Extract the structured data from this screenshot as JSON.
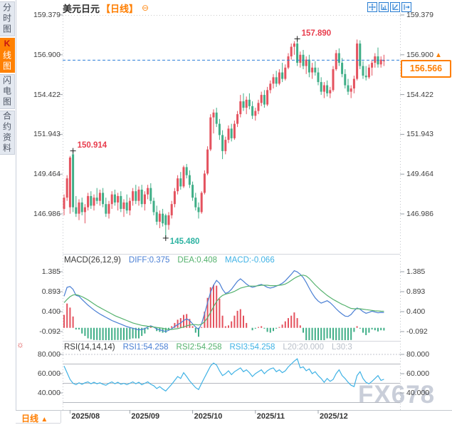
{
  "header": {
    "symbol": "美元日元",
    "period_tag": "【日线】",
    "collapse_icon": "⊖"
  },
  "sidebar": {
    "tabs": [
      {
        "label": "分时图",
        "active": false
      },
      {
        "label": "K线图",
        "first_char": "K",
        "rest": "线图",
        "active": true
      },
      {
        "label": "闪电图",
        "active": false
      },
      {
        "label": "合约资料",
        "active": false
      }
    ]
  },
  "toolbar_icons": [
    "pan-crosshair",
    "axis-bars",
    "axis-trend",
    "pop-out"
  ],
  "bottom_bar": {
    "period_label": "日线",
    "arrow": "▲"
  },
  "watermark": "FX678",
  "colors": {
    "up": "#e4525e",
    "down": "#3fae87",
    "current_line": "#2b7fd9",
    "accent_orange": "#ff7e00",
    "diff_blue": "#4a7fd4",
    "dea_green": "#55b26e",
    "macd_cyan": "#3fb2e5",
    "rsi_cyan": "#3fb2e5",
    "label_gray": "#b9bfc9",
    "high_label_red": "#e83d4d",
    "low_label_teal": "#2eb3a2"
  },
  "chart_data": {
    "type": "candlestick+macd+rsi",
    "symbol": "美元日元",
    "period": "日线",
    "price_axis_ticks": [
      "159.379",
      "156.900",
      "154.422",
      "151.943",
      "149.464",
      "146.986"
    ],
    "date_ticks": [
      {
        "label": "2025/08",
        "index": 2
      },
      {
        "label": "2025/09",
        "index": 22
      },
      {
        "label": "2025/10",
        "index": 43
      },
      {
        "label": "2025/11",
        "index": 64
      },
      {
        "label": "2025/12",
        "index": 85
      }
    ],
    "current_price": {
      "text": "156.566",
      "value": 156.566
    },
    "annotations": {
      "early_high": {
        "text": "150.914",
        "index": 3,
        "price": 150.914
      },
      "low": {
        "text": "145.480",
        "index": 34,
        "price": 145.48
      },
      "high": {
        "text": "157.890",
        "index": 78,
        "price": 157.89
      }
    },
    "candles": [
      [
        147.3,
        148.2,
        146.9,
        148.0
      ],
      [
        148.0,
        149.4,
        147.8,
        149.2
      ],
      [
        147.4,
        150.6,
        147.0,
        150.5
      ],
      [
        150.7,
        150.914,
        147.1,
        147.4
      ],
      [
        147.4,
        148.1,
        146.8,
        147.0
      ],
      [
        147.0,
        147.9,
        146.6,
        147.7
      ],
      [
        147.7,
        148.0,
        146.9,
        147.1
      ],
      [
        147.1,
        147.6,
        146.4,
        147.4
      ],
      [
        147.4,
        148.3,
        147.2,
        148.1
      ],
      [
        148.1,
        148.4,
        147.3,
        147.5
      ],
      [
        147.5,
        148.2,
        147.2,
        148.0
      ],
      [
        148.0,
        148.6,
        147.6,
        147.8
      ],
      [
        147.8,
        148.5,
        147.5,
        148.3
      ],
      [
        148.3,
        148.6,
        147.4,
        147.6
      ],
      [
        147.6,
        148.0,
        146.8,
        147.0
      ],
      [
        147.0,
        147.8,
        146.7,
        147.6
      ],
      [
        147.6,
        148.4,
        147.3,
        148.2
      ],
      [
        148.2,
        148.5,
        147.5,
        147.7
      ],
      [
        147.7,
        148.3,
        147.2,
        148.1
      ],
      [
        148.1,
        148.4,
        147.1,
        147.3
      ],
      [
        147.3,
        147.9,
        146.8,
        147.7
      ],
      [
        147.7,
        148.2,
        147.0,
        147.2
      ],
      [
        147.2,
        148.0,
        146.9,
        147.8
      ],
      [
        147.8,
        148.6,
        147.5,
        148.4
      ],
      [
        148.4,
        148.8,
        147.6,
        147.8
      ],
      [
        147.8,
        148.7,
        147.5,
        148.5
      ],
      [
        148.5,
        148.8,
        147.4,
        147.6
      ],
      [
        147.6,
        148.4,
        147.2,
        148.2
      ],
      [
        148.2,
        148.8,
        147.9,
        148.6
      ],
      [
        148.6,
        148.9,
        147.6,
        147.8
      ],
      [
        147.8,
        148.0,
        146.9,
        147.1
      ],
      [
        147.1,
        147.5,
        146.3,
        146.5
      ],
      [
        146.5,
        147.2,
        146.1,
        147.0
      ],
      [
        147.0,
        147.3,
        146.2,
        146.4
      ],
      [
        146.9,
        147.0,
        145.48,
        146.3
      ],
      [
        146.3,
        147.1,
        146.0,
        146.9
      ],
      [
        146.9,
        147.8,
        146.7,
        147.6
      ],
      [
        147.6,
        148.6,
        147.4,
        148.4
      ],
      [
        148.4,
        149.4,
        148.2,
        149.2
      ],
      [
        149.2,
        149.6,
        148.5,
        148.7
      ],
      [
        148.7,
        150.0,
        148.6,
        149.9
      ],
      [
        149.9,
        150.1,
        149.2,
        149.4
      ],
      [
        149.4,
        149.7,
        148.6,
        148.8
      ],
      [
        148.8,
        149.0,
        147.8,
        148.0
      ],
      [
        148.0,
        148.3,
        147.2,
        147.4
      ],
      [
        147.4,
        147.7,
        146.7,
        147.1
      ],
      [
        147.1,
        148.4,
        147.0,
        148.3
      ],
      [
        148.3,
        149.7,
        148.2,
        149.5
      ],
      [
        149.5,
        151.2,
        149.4,
        151.0
      ],
      [
        151.0,
        153.2,
        150.9,
        153.0
      ],
      [
        153.0,
        153.5,
        152.0,
        153.3
      ],
      [
        153.3,
        153.6,
        152.4,
        152.6
      ],
      [
        152.6,
        152.9,
        151.6,
        151.9
      ],
      [
        151.9,
        152.2,
        150.4,
        150.9
      ],
      [
        150.9,
        151.8,
        150.7,
        151.6
      ],
      [
        151.6,
        152.5,
        151.4,
        152.3
      ],
      [
        152.3,
        152.6,
        151.5,
        151.7
      ],
      [
        151.7,
        152.8,
        151.6,
        152.6
      ],
      [
        152.6,
        153.4,
        152.4,
        153.2
      ],
      [
        153.2,
        154.4,
        153.0,
        154.0
      ],
      [
        154.0,
        154.5,
        153.4,
        153.6
      ],
      [
        153.6,
        154.3,
        153.2,
        154.1
      ],
      [
        154.1,
        154.5,
        153.5,
        153.7
      ],
      [
        153.7,
        154.0,
        152.9,
        153.1
      ],
      [
        153.1,
        153.6,
        152.8,
        153.4
      ],
      [
        153.4,
        154.1,
        153.2,
        153.9
      ],
      [
        153.9,
        154.6,
        153.7,
        154.4
      ],
      [
        154.4,
        154.7,
        153.6,
        153.8
      ],
      [
        153.8,
        154.9,
        153.7,
        154.7
      ],
      [
        154.7,
        155.3,
        154.5,
        155.1
      ],
      [
        155.1,
        155.7,
        154.8,
        155.5
      ],
      [
        155.5,
        155.9,
        154.9,
        155.1
      ],
      [
        155.1,
        156.0,
        155.0,
        155.8
      ],
      [
        155.8,
        156.4,
        155.2,
        155.4
      ],
      [
        155.4,
        156.3,
        155.3,
        156.1
      ],
      [
        156.1,
        157.0,
        156.0,
        156.8
      ],
      [
        156.8,
        157.6,
        156.6,
        157.4
      ],
      [
        157.4,
        157.75,
        156.9,
        157.6
      ],
      [
        157.6,
        157.89,
        156.2,
        156.4
      ],
      [
        156.4,
        157.1,
        156.1,
        156.9
      ],
      [
        156.9,
        157.2,
        156.0,
        156.2
      ],
      [
        156.2,
        156.8,
        155.7,
        156.6
      ],
      [
        156.6,
        156.9,
        155.5,
        155.8
      ],
      [
        155.8,
        156.4,
        155.4,
        156.1
      ],
      [
        156.1,
        156.5,
        155.6,
        155.8
      ],
      [
        155.8,
        156.1,
        155.0,
        155.2
      ],
      [
        155.2,
        155.5,
        154.4,
        154.6
      ],
      [
        154.6,
        155.2,
        154.2,
        155.0
      ],
      [
        155.0,
        155.3,
        154.3,
        154.5
      ],
      [
        154.5,
        154.9,
        154.2,
        154.7
      ],
      [
        154.7,
        156.2,
        154.6,
        156.0
      ],
      [
        156.0,
        157.2,
        155.9,
        157.0
      ],
      [
        157.0,
        157.3,
        156.2,
        156.4
      ],
      [
        156.4,
        156.7,
        155.5,
        155.7
      ],
      [
        155.7,
        156.0,
        154.8,
        155.0
      ],
      [
        155.0,
        155.4,
        154.4,
        154.6
      ],
      [
        154.6,
        155.0,
        154.2,
        154.8
      ],
      [
        154.8,
        155.6,
        154.5,
        155.4
      ],
      [
        155.4,
        157.85,
        155.3,
        157.6
      ],
      [
        157.6,
        157.8,
        156.0,
        156.2
      ],
      [
        156.2,
        156.5,
        155.4,
        155.6
      ],
      [
        155.6,
        156.2,
        155.3,
        155.5
      ],
      [
        155.5,
        156.3,
        155.4,
        156.1
      ],
      [
        156.1,
        156.6,
        155.6,
        156.4
      ],
      [
        156.4,
        157.0,
        156.1,
        156.8
      ],
      [
        156.8,
        157.35,
        156.1,
        156.3
      ],
      [
        156.3,
        156.8,
        156.1,
        156.6
      ],
      [
        156.5,
        156.9,
        156.2,
        156.566
      ]
    ],
    "macd": {
      "title": "MACD(26,12,9)",
      "diff_label": "DIFF:0.375",
      "dea_label": "DEA:0.408",
      "macd_label": "MACD:-0.066",
      "ticks": [
        "1.385",
        "0.893",
        "0.400",
        "-0.092"
      ],
      "diff": [
        0.78,
        1.0,
        1.02,
        0.95,
        0.8,
        0.78,
        0.7,
        0.63,
        0.56,
        0.5,
        0.44,
        0.39,
        0.34,
        0.3,
        0.26,
        0.22,
        0.18,
        0.15,
        0.12,
        0.09,
        0.06,
        0.03,
        0.01,
        -0.01,
        -0.03,
        -0.05,
        -0.04,
        -0.02,
        0.02,
        0.05,
        0.02,
        -0.03,
        -0.05,
        -0.07,
        -0.09,
        -0.06,
        -0.02,
        0.03,
        0.08,
        0.12,
        0.18,
        0.22,
        0.18,
        0.1,
        0.02,
        -0.04,
        0.1,
        0.35,
        0.62,
        0.88,
        1.05,
        1.17,
        1.1,
        0.95,
        0.85,
        0.88,
        0.95,
        1.05,
        1.15,
        1.21,
        1.15,
        1.08,
        1.03,
        1.0,
        1.02,
        1.05,
        1.07,
        1.04,
        1.0,
        0.98,
        1.0,
        1.03,
        1.06,
        1.1,
        1.16,
        1.24,
        1.32,
        1.41,
        1.38,
        1.32,
        1.24,
        1.12,
        0.98,
        0.85,
        0.74,
        0.66,
        0.61,
        0.64,
        0.67,
        0.62,
        0.55,
        0.47,
        0.4,
        0.34,
        0.29,
        0.28,
        0.33,
        0.42,
        0.49,
        0.46,
        0.4,
        0.36,
        0.38,
        0.41,
        0.39,
        0.37,
        0.38,
        0.375
      ],
      "dea": [
        0.62,
        0.7,
        0.77,
        0.81,
        0.82,
        0.8,
        0.77,
        0.73,
        0.69,
        0.64,
        0.59,
        0.54,
        0.5,
        0.46,
        0.42,
        0.38,
        0.34,
        0.3,
        0.27,
        0.24,
        0.21,
        0.18,
        0.15,
        0.12,
        0.1,
        0.08,
        0.06,
        0.05,
        0.04,
        0.03,
        0.02,
        0.01,
        0.0,
        -0.01,
        -0.03,
        -0.04,
        -0.04,
        -0.03,
        -0.02,
        0.0,
        0.02,
        0.05,
        0.07,
        0.08,
        0.08,
        0.07,
        0.09,
        0.15,
        0.25,
        0.38,
        0.52,
        0.65,
        0.74,
        0.8,
        0.83,
        0.85,
        0.87,
        0.9,
        0.94,
        0.98,
        1.0,
        1.02,
        1.03,
        1.03,
        1.03,
        1.04,
        1.05,
        1.05,
        1.05,
        1.04,
        1.04,
        1.04,
        1.05,
        1.06,
        1.08,
        1.12,
        1.17,
        1.22,
        1.26,
        1.29,
        1.3,
        1.28,
        1.22,
        1.14,
        1.06,
        0.99,
        0.92,
        0.86,
        0.8,
        0.75,
        0.7,
        0.66,
        0.62,
        0.58,
        0.55,
        0.51,
        0.48,
        0.47,
        0.47,
        0.47,
        0.46,
        0.45,
        0.44,
        0.43,
        0.42,
        0.415,
        0.41,
        0.408
      ]
    },
    "rsi": {
      "title": "RSI(14,14,14)",
      "l1": "RSI1:54.258",
      "l2": "RSI2:54.258",
      "l3": "RSI3:54.258",
      "l20": "L20:20.000",
      "l30": "L30:3",
      "ticks": [
        "80.000",
        "60.000",
        "40.000"
      ],
      "ref_lines": [
        80,
        70,
        50,
        30
      ],
      "values": [
        68,
        61,
        54,
        50,
        48.5,
        50.5,
        49,
        50.5,
        51.5,
        49.5,
        51,
        49.5,
        50.5,
        49,
        48,
        50,
        51.5,
        49.5,
        51,
        49,
        50,
        48.5,
        50,
        51.5,
        49.5,
        51,
        48.5,
        50,
        51.5,
        49,
        47.5,
        44.5,
        46.5,
        44,
        42,
        45.5,
        49,
        53,
        57,
        55,
        61,
        57,
        52.5,
        49,
        45.5,
        43.5,
        50,
        56,
        62,
        68,
        71,
        69,
        63,
        58,
        60,
        63,
        59,
        62,
        64,
        66,
        62,
        64,
        61,
        57,
        60,
        62,
        64,
        60,
        63,
        65,
        66,
        62,
        64,
        61,
        63,
        67,
        70,
        73,
        75.5,
        66,
        67,
        63,
        65,
        60,
        62,
        58,
        55,
        51,
        55,
        52,
        54,
        60,
        64,
        58,
        55,
        51,
        48,
        46.5,
        58,
        62,
        55,
        51,
        49.5,
        52,
        55,
        58,
        53,
        54.258
      ]
    }
  }
}
